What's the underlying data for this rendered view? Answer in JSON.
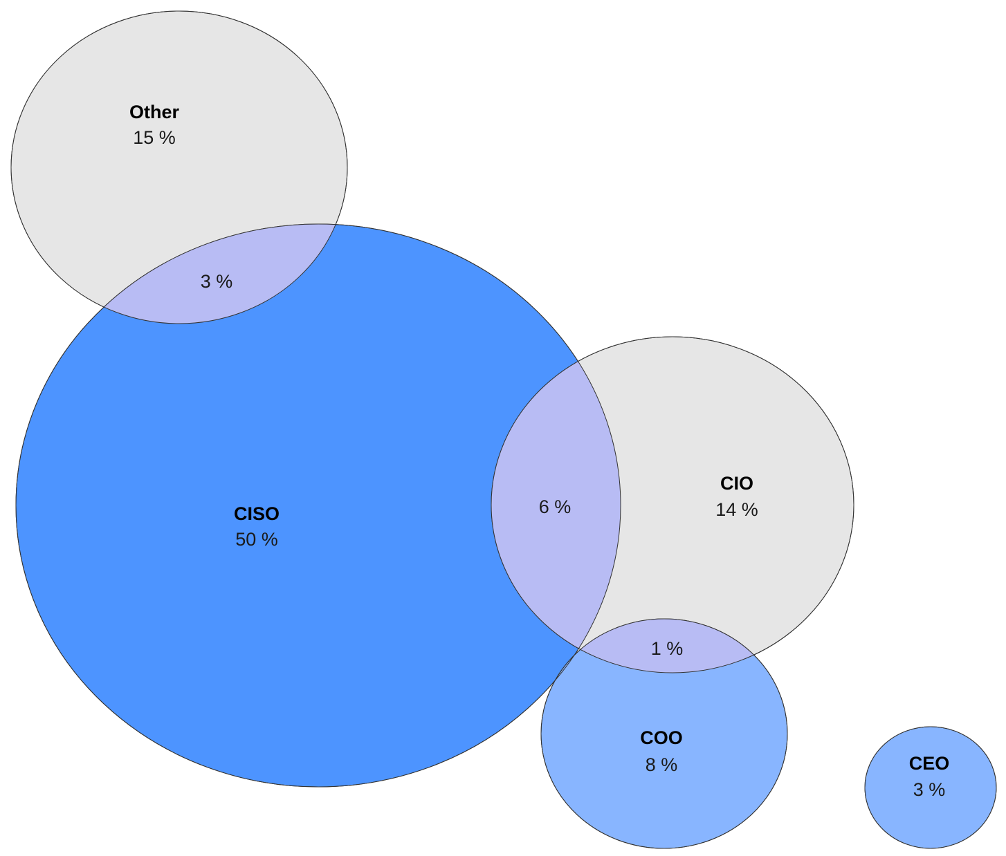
{
  "diagram": {
    "type": "venn",
    "colors": {
      "ciso": "#4d94ff",
      "other": "#e6e6e6",
      "cio": "#e6e6e6",
      "coo": "#88b5ff",
      "ceo": "#88b5ff",
      "overlap": "#b8bcf4",
      "outline": "#333333"
    },
    "sets": [
      {
        "id": "other",
        "name": "Other",
        "value": "15 %"
      },
      {
        "id": "ciso",
        "name": "CISO",
        "value": "50 %"
      },
      {
        "id": "cio",
        "name": "CIO",
        "value": "14 %"
      },
      {
        "id": "coo",
        "name": "COO",
        "value": "8 %"
      },
      {
        "id": "ceo",
        "name": "CEO",
        "value": "3 %"
      }
    ],
    "overlaps": [
      {
        "id": "other-ciso",
        "sets": [
          "Other",
          "CISO"
        ],
        "value": "3 %"
      },
      {
        "id": "ciso-cio",
        "sets": [
          "CISO",
          "CIO"
        ],
        "value": "6 %"
      },
      {
        "id": "cio-coo",
        "sets": [
          "CIO",
          "COO"
        ],
        "value": "1 %"
      }
    ]
  }
}
